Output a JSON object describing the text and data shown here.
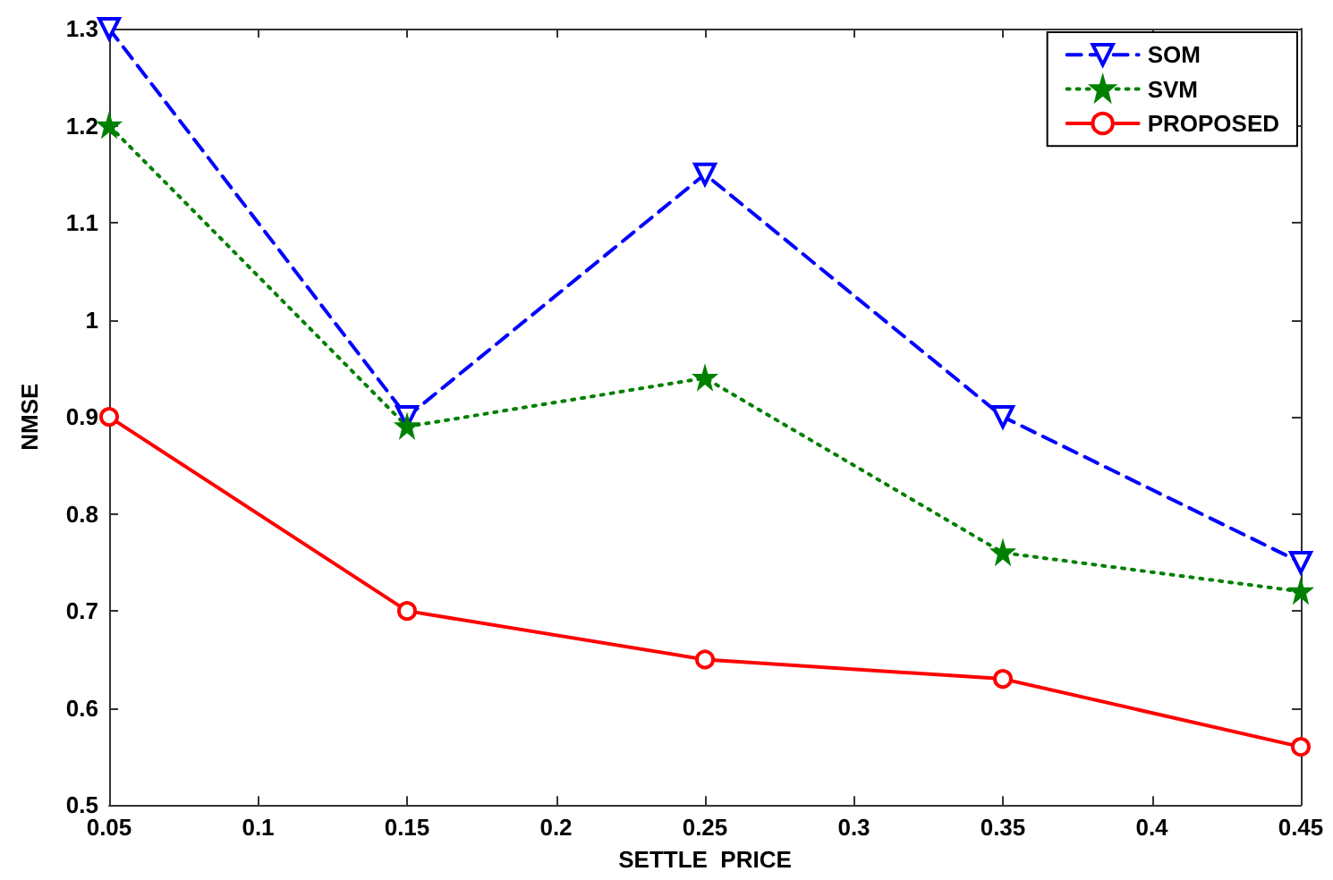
{
  "chart_data": {
    "type": "line",
    "xlabel": "SETTLE  PRICE",
    "ylabel": "NMSE",
    "x": [
      0.05,
      0.15,
      0.25,
      0.35,
      0.45
    ],
    "series": [
      {
        "name": "SOM",
        "color": "#0000ff",
        "marker": "triangle",
        "line_style": "dashed",
        "values": [
          1.3,
          0.9,
          1.15,
          0.9,
          0.75
        ]
      },
      {
        "name": "SVM",
        "color": "#008000",
        "marker": "star",
        "line_style": "dotted",
        "values": [
          1.2,
          0.89,
          0.94,
          0.76,
          0.72
        ]
      },
      {
        "name": "PROPOSED",
        "color": "#ff0000",
        "marker": "circle",
        "line_style": "solid",
        "values": [
          0.9,
          0.7,
          0.65,
          0.63,
          0.56
        ]
      }
    ],
    "xlim": [
      0.05,
      0.45
    ],
    "xticks": [
      0.05,
      0.1,
      0.15,
      0.2,
      0.25,
      0.3,
      0.35,
      0.4,
      0.45
    ],
    "ylim": [
      0.5,
      1.3
    ],
    "yticks": [
      0.5,
      0.6,
      0.7,
      0.8,
      0.9,
      1,
      1.1,
      1.2,
      1.3
    ],
    "grid": false,
    "legend": "top right"
  }
}
